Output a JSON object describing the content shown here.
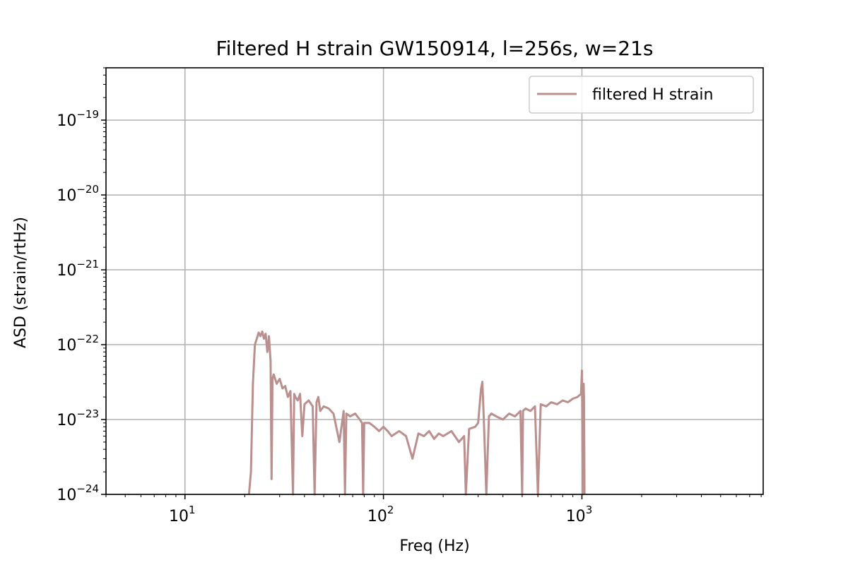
{
  "chart_data": {
    "type": "line",
    "title": "Filtered H strain GW150914, l=256s, w=21s",
    "xlabel": "Freq (Hz)",
    "ylabel": "ASD (strain/rtHz)",
    "x_scale": "log",
    "y_scale": "log",
    "xlim": [
      4,
      8192
    ],
    "ylim": [
      1e-24,
      5e-19
    ],
    "x_ticks": [
      {
        "value": 10,
        "base": "10",
        "exp": "1"
      },
      {
        "value": 100,
        "base": "10",
        "exp": "2"
      },
      {
        "value": 1000,
        "base": "10",
        "exp": "3"
      }
    ],
    "y_ticks": [
      {
        "value": 1e-24,
        "base": "10",
        "exp": "−24"
      },
      {
        "value": 1e-23,
        "base": "10",
        "exp": "−23"
      },
      {
        "value": 1e-22,
        "base": "10",
        "exp": "−22"
      },
      {
        "value": 1e-21,
        "base": "10",
        "exp": "−21"
      },
      {
        "value": 1e-20,
        "base": "10",
        "exp": "−20"
      },
      {
        "value": 1e-19,
        "base": "10",
        "exp": "−19"
      }
    ],
    "grid": true,
    "legend": {
      "position": "top-right",
      "entries": [
        "filtered H strain"
      ]
    },
    "series": [
      {
        "name": "filtered H strain",
        "color": "#bc8f8f",
        "x": [
          21.0,
          21.5,
          22.0,
          22.5,
          23.0,
          23.5,
          24.0,
          24.5,
          25.0,
          25.5,
          26.0,
          26.5,
          27.0,
          27.3,
          27.6,
          28.0,
          29.0,
          30.0,
          31.0,
          32.0,
          33.0,
          34.0,
          35.0,
          35.5,
          36.0,
          37.0,
          38.0,
          39.0,
          40.0,
          42.0,
          44.0,
          45.0,
          46.0,
          47.0,
          48.0,
          50.0,
          53.0,
          56.0,
          60.0,
          63.0,
          64.0,
          65.0,
          68.0,
          72.0,
          76.0,
          78.0,
          79.0,
          80.0,
          85.0,
          90.0,
          95.0,
          100.0,
          105.0,
          110.0,
          120.0,
          130.0,
          140.0,
          150.0,
          160.0,
          170.0,
          180.0,
          190.0,
          200.0,
          220.0,
          240.0,
          255.0,
          260.0,
          270.0,
          290.0,
          300.0,
          310.0,
          315.0,
          320.0,
          330.0,
          340.0,
          350.0,
          370.0,
          400.0,
          430.0,
          460.0,
          490.0,
          500.0,
          505.0,
          520.0,
          550.0,
          580.0,
          600.0,
          620.0,
          660.0,
          700.0,
          750.0,
          800.0,
          850.0,
          900.0,
          950.0,
          990.0,
          1000.0,
          1010.0,
          1020.0,
          1024.0,
          1030.0
        ],
        "values": [
          1e-24,
          2e-24,
          3e-23,
          1e-22,
          1.2e-22,
          1.45e-22,
          1.3e-22,
          1.5e-22,
          1.2e-22,
          1.4e-22,
          8e-23,
          1.3e-22,
          6e-23,
          1.6e-24,
          3.5e-23,
          4e-23,
          3e-23,
          3.5e-23,
          2.6e-23,
          2.8e-23,
          2e-23,
          2.4e-23,
          1e-24,
          2.2e-23,
          2e-23,
          1.8e-23,
          2.2e-23,
          6e-24,
          1.6e-23,
          1.8e-23,
          1.5e-23,
          1e-24,
          1.7e-23,
          2e-23,
          1.3e-23,
          1.5e-23,
          1.4e-23,
          1.2e-23,
          5e-24,
          1.3e-23,
          1e-24,
          1.2e-23,
          1.1e-23,
          1.2e-23,
          1e-23,
          9e-24,
          1e-24,
          9e-24,
          9e-24,
          8e-24,
          7e-24,
          8e-24,
          7e-24,
          6e-24,
          7e-24,
          6e-24,
          3e-24,
          6.5e-24,
          6e-24,
          7e-24,
          5.5e-24,
          6.5e-24,
          6e-24,
          7e-24,
          5e-24,
          6e-24,
          1e-24,
          7.5e-24,
          8e-24,
          9e-24,
          2.5e-23,
          3.2e-23,
          1.1e-23,
          1e-24,
          1.1e-23,
          1.2e-23,
          1.1e-23,
          1e-23,
          1.2e-23,
          1.1e-23,
          1.3e-23,
          1e-24,
          1.3e-23,
          1.4e-23,
          1.3e-23,
          1.5e-23,
          1e-24,
          1.6e-23,
          1.5e-23,
          1.7e-23,
          1.6e-23,
          1.8e-23,
          1.7e-23,
          1.9e-23,
          2e-23,
          2.2e-23,
          4.5e-23,
          1e-24,
          3e-23,
          2e-23,
          1e-24
        ]
      }
    ]
  }
}
